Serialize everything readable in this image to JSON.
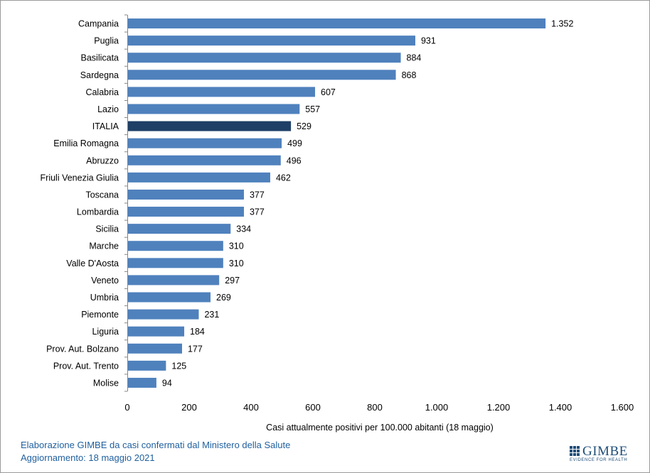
{
  "chart_data": {
    "type": "bar",
    "orientation": "horizontal",
    "categories": [
      "Campania",
      "Puglia",
      "Basilicata",
      "Sardegna",
      "Calabria",
      "Lazio",
      "ITALIA",
      "Emilia Romagna",
      "Abruzzo",
      "Friuli Venezia Giulia",
      "Toscana",
      "Lombardia",
      "Sicilia",
      "Marche",
      "Valle D'Aosta",
      "Veneto",
      "Umbria",
      "Piemonte",
      "Liguria",
      "Prov. Aut. Bolzano",
      "Prov. Aut. Trento",
      "Molise"
    ],
    "values": [
      1352,
      931,
      884,
      868,
      607,
      557,
      529,
      499,
      496,
      462,
      377,
      377,
      334,
      310,
      310,
      297,
      269,
      231,
      184,
      177,
      125,
      94
    ],
    "value_labels": [
      "1.352",
      "931",
      "884",
      "868",
      "607",
      "557",
      "529",
      "499",
      "496",
      "462",
      "377",
      "377",
      "334",
      "310",
      "310",
      "297",
      "269",
      "231",
      "184",
      "177",
      "125",
      "94"
    ],
    "highlight": "ITALIA",
    "xlabel": "Casi attualmente positivi per 100.000 abitanti (18 maggio)",
    "ylabel": "",
    "xlim": [
      0,
      1600
    ],
    "ticks": [
      0,
      200,
      400,
      600,
      800,
      1000,
      1200,
      1400,
      1600
    ],
    "tick_labels": [
      "0",
      "200",
      "400",
      "600",
      "800",
      "1.000",
      "1.200",
      "1.400",
      "1.600"
    ],
    "grid": false,
    "colors": {
      "bar": "#4f81bd",
      "highlight": "#1f3f66",
      "text": "#000000"
    }
  },
  "footer": {
    "line1": "Elaborazione GIMBE da casi confermati dal Ministero della Salute",
    "line2": "Aggiornamento: 18 maggio 2021"
  },
  "logo": {
    "name": "GIMBE",
    "tagline": "EVIDENCE FOR HEALTH"
  }
}
